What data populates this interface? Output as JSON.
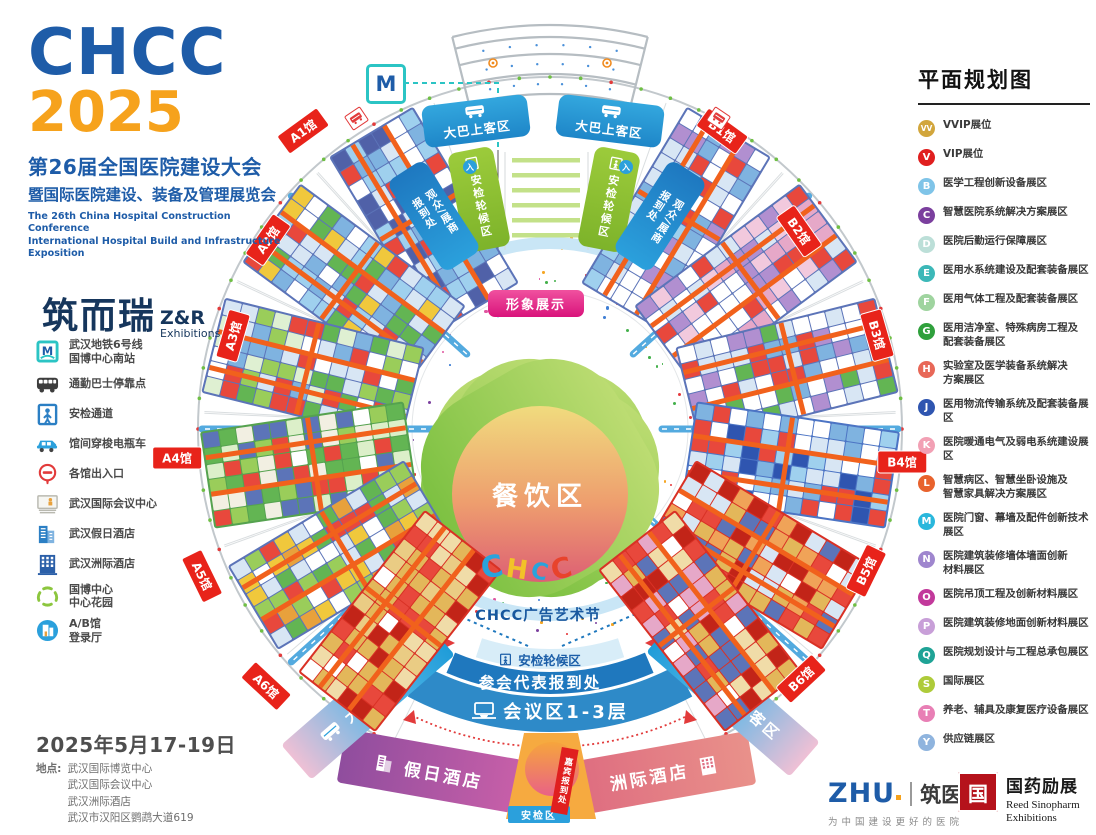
{
  "branding": {
    "logo": "CHCC",
    "year": "2025",
    "title_cn": "第26届全国医院建设大会",
    "subtitle_cn": "暨国际医院建设、装备及管理展览会",
    "title_en1": "The 26th China Hospital Construction Conference",
    "title_en2": "International Hospital Build and Infrastructure Exposition",
    "organizer_cn": "筑而瑞",
    "organizer_en": "Z&R",
    "organizer_sub": "Exhibitions"
  },
  "plan_legend": {
    "title": "平面规划图",
    "items": [
      {
        "code": "VV",
        "color": "#D2A63C",
        "label": "VVIP展位"
      },
      {
        "code": "V",
        "color": "#E01F1F",
        "label": "VIP展位"
      },
      {
        "code": "B",
        "color": "#7FC4E8",
        "label": "医学工程创新设备展区"
      },
      {
        "code": "C",
        "color": "#7B3F9E",
        "label": "智慧医院系统解决方案展区"
      },
      {
        "code": "D",
        "color": "#BCDFD8",
        "label": "医院后勤运行保障展区"
      },
      {
        "code": "E",
        "color": "#3CB8B8",
        "label": "医用水系统建设及配套装备展区"
      },
      {
        "code": "F",
        "color": "#9FD49F",
        "label": "医用气体工程及配套装备展区"
      },
      {
        "code": "G",
        "color": "#2FA03C",
        "label": "医用洁净室、特殊病房工程及\n配套装备展区"
      },
      {
        "code": "H",
        "color": "#E86858",
        "label": "实验室及医学装备系统解决\n方案展区"
      },
      {
        "code": "J",
        "color": "#2F55B0",
        "label": "医用物流传输系统及配套装备展区"
      },
      {
        "code": "K",
        "color": "#F2A0B4",
        "label": "医院暖通电气及弱电系统建设展区"
      },
      {
        "code": "L",
        "color": "#E8622D",
        "label": "智慧病区、智慧坐卧设施及\n智慧家具解决方案展区"
      },
      {
        "code": "M",
        "color": "#29B7DC",
        "label": "医院门窗、幕墙及配件创新技术展区"
      },
      {
        "code": "N",
        "color": "#9F86CE",
        "label": "医院建筑装修墙体墙面创新\n材料展区"
      },
      {
        "code": "O",
        "color": "#C2399B",
        "label": "医院吊顶工程及创新材料展区"
      },
      {
        "code": "P",
        "color": "#C89FD8",
        "label": "医院建筑装修地面创新材料展区"
      },
      {
        "code": "Q",
        "color": "#1FA396",
        "label": "医院规划设计与工程总承包展区"
      },
      {
        "code": "S",
        "color": "#AECB3A",
        "label": "国际展区"
      },
      {
        "code": "T",
        "color": "#E87FB5",
        "label": "养老、辅具及康复医疗设备展区"
      },
      {
        "code": "Y",
        "color": "#8FB4DE",
        "label": "供应链展区"
      }
    ]
  },
  "site_legend": {
    "items": [
      {
        "icon": "metro-icon",
        "label": "武汉地铁6号线\n国博中心南站"
      },
      {
        "icon": "bus-icon",
        "label": "通勤巴士停靠点"
      },
      {
        "icon": "security-icon",
        "label": "安检通道"
      },
      {
        "icon": "shuttle-icon",
        "label": "馆间穿梭电瓶车"
      },
      {
        "icon": "gate-icon",
        "label": "各馆出入口"
      },
      {
        "icon": "conference-center-icon",
        "label": "武汉国际会议中心"
      },
      {
        "icon": "holiday-inn-icon",
        "label": "武汉假日酒店"
      },
      {
        "icon": "intercontinental-icon",
        "label": "武汉洲际酒店"
      },
      {
        "icon": "garden-icon",
        "label": "国博中心\n中心花园"
      },
      {
        "icon": "lobby-icon",
        "label": "A/B馆\n登录厅"
      }
    ]
  },
  "map": {
    "metro_glyph": "M",
    "bus_boarding": "大巴上客区",
    "security_wait": "安检轮候区",
    "visitor_checkin": "观众/展商\n报到处",
    "entry_mark": "入",
    "image_display": "形象展示",
    "dining": "餐饮区",
    "chcc_letters": [
      "C",
      "H",
      "C",
      "C"
    ],
    "art_festival": "CHCC广告艺术节",
    "delegate_checkin": "参会代表报到处",
    "conference_zone": "会议区1-3层",
    "holiday_inn": "假日酒店",
    "intercontinental": "洲际酒店",
    "security_zone": "安检区",
    "vip_reception": "嘉宾报到处",
    "bus_dropoff": "大巴落客区",
    "halls": [
      {
        "id": "A1",
        "label": "A1馆",
        "base": "#5C74B8",
        "cells": [
          "#D8E6F4",
          "#7FB3E0",
          "#E8483C",
          "#FFFFFF",
          "#9FD0EE",
          "#5061A8"
        ]
      },
      {
        "id": "A2",
        "label": "A2馆",
        "base": "#5C74B8",
        "cells": [
          "#E8483C",
          "#7FB3E0",
          "#63B553",
          "#D8E6F4",
          "#F0C83C",
          "#9FD0EE"
        ]
      },
      {
        "id": "A3",
        "label": "A3馆",
        "base": "#5C74B8",
        "cells": [
          "#63B553",
          "#9ACD5A",
          "#E8483C",
          "#7FB3E0",
          "#DFF0D2",
          "#D8E6F4"
        ]
      },
      {
        "id": "A4",
        "label": "A4馆",
        "base": "#55A24F",
        "cells": [
          "#9ACD5A",
          "#63B553",
          "#E8483C",
          "#5C74B8",
          "#DCEFC9",
          "#F2EFE2"
        ]
      },
      {
        "id": "A5",
        "label": "A5馆",
        "base": "#5C74B8",
        "cells": [
          "#9ACD5A",
          "#E8483C",
          "#63B553",
          "#F0C83C",
          "#D8E6F4",
          "#E8A13C"
        ]
      },
      {
        "id": "A6",
        "label": "A6馆",
        "base": "#D93125",
        "cells": [
          "#E3B75A",
          "#EACC84",
          "#E8483C",
          "#C22418",
          "#F0DCA8",
          "#E3B75A"
        ]
      },
      {
        "id": "B1",
        "label": "B1馆",
        "base": "#5C74B8",
        "cells": [
          "#D8E6F4",
          "#7FB3E0",
          "#E8483C",
          "#B18FD0",
          "#FFFFFF",
          "#9FD0EE"
        ]
      },
      {
        "id": "B2",
        "label": "B2馆",
        "base": "#5C74B8",
        "cells": [
          "#E6A8C8",
          "#B18FD0",
          "#E8483C",
          "#FFFFFF",
          "#D8E6F4",
          "#F2C9DD"
        ]
      },
      {
        "id": "B3",
        "label": "B3馆",
        "base": "#5C74B8",
        "cells": [
          "#7FB3E0",
          "#E8483C",
          "#D8E6F4",
          "#B18FD0",
          "#FFFFFF",
          "#63B553"
        ]
      },
      {
        "id": "B4",
        "label": "B4馆",
        "base": "#4C74C4",
        "cells": [
          "#9FD0EE",
          "#D8E6F4",
          "#E8483C",
          "#FFFFFF",
          "#7FB3E0",
          "#2F55B0"
        ]
      },
      {
        "id": "B5",
        "label": "B5馆",
        "base": "#D93125",
        "cells": [
          "#E8483C",
          "#5C74B8",
          "#F0A358",
          "#E3B75A",
          "#D8E6F4",
          "#C22418"
        ]
      },
      {
        "id": "B6",
        "label": "B6馆",
        "base": "#D93125",
        "cells": [
          "#E8483C",
          "#E6A8C8",
          "#5C74B8",
          "#E3B75A",
          "#F0DCA8",
          "#C22418"
        ]
      }
    ]
  },
  "footer": {
    "date": "2025年5月17-19日",
    "location_label": "地点:",
    "locations": [
      "武汉国际博览中心",
      "武汉国际会议中心",
      "武汉洲际酒店",
      "武汉市汉阳区鹦鹉大道619"
    ]
  },
  "partners": {
    "zhu_logo": "ZHU",
    "zhu_name": "筑医台",
    "zhu_tagline": "为中国建设更好的医院",
    "reed_seal": "国",
    "reed_name_cn": "国药励展",
    "reed_name_en": "Reed Sinopharm",
    "reed_name_en2": "Exhibitions"
  },
  "colors": {
    "hall_label_red": "#E8231A",
    "aisle_orange": "#F1611C",
    "ring_road_blue": "#C9E6F6",
    "spoke_blue": "#53AADF",
    "light_band": "#D8EDF8",
    "delegate_band": "#1F78BE",
    "conference_band": "#2E8AC8",
    "canopy_gray": "#B6BDC2",
    "ring_gray": "#C2C8CC",
    "tick_green": "#6FBF44",
    "red_accent": "#E23B3B",
    "metro_teal": "#2BC4C4",
    "confetti": [
      "#E5393C",
      "#F5A623",
      "#3F7FD4",
      "#43B04A",
      "#E055A0",
      "#7B3F9E"
    ]
  }
}
